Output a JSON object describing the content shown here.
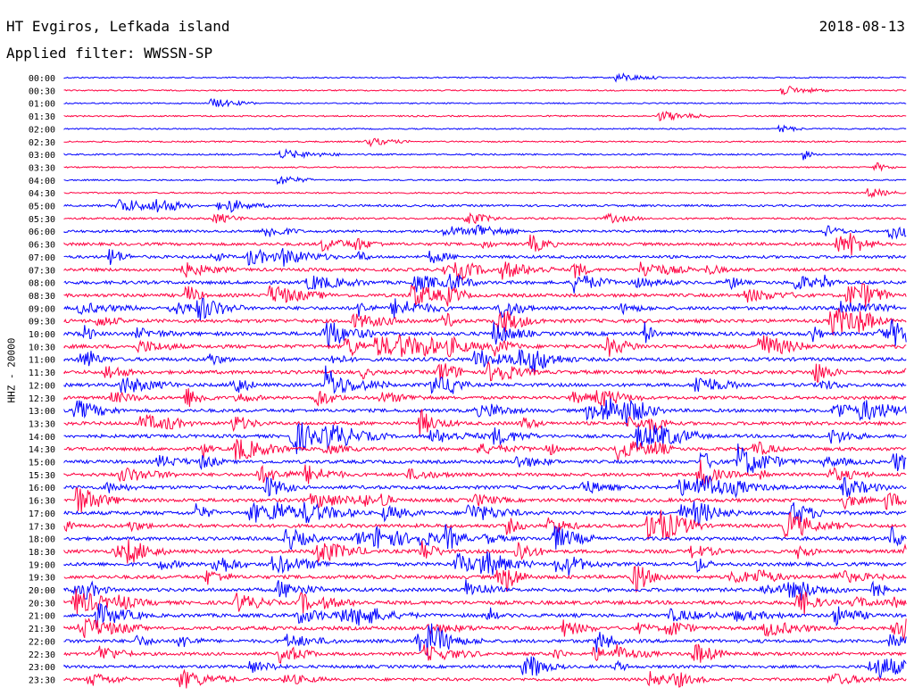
{
  "header": {
    "station": "HT Evgiros, Lefkada island",
    "date": "2018-08-13",
    "filter": "Applied filter: WWSSN-SP"
  },
  "chart_data": {
    "type": "line",
    "title": "HT Evgiros, Lefkada island",
    "ylabel": "HHZ - 20000",
    "xlabel": "",
    "row_labels": [
      "00:00",
      "00:30",
      "01:00",
      "01:30",
      "02:00",
      "02:30",
      "03:00",
      "03:30",
      "04:00",
      "04:30",
      "05:00",
      "05:30",
      "06:00",
      "06:30",
      "07:00",
      "07:30",
      "08:00",
      "08:30",
      "09:00",
      "09:30",
      "10:00",
      "10:30",
      "11:00",
      "11:30",
      "12:00",
      "12:30",
      "13:00",
      "13:30",
      "14:00",
      "14:30",
      "15:00",
      "15:30",
      "16:00",
      "16:30",
      "17:00",
      "17:30",
      "18:00",
      "18:30",
      "19:00",
      "19:30",
      "20:00",
      "20:30",
      "21:00",
      "21:30",
      "22:00",
      "22:30",
      "23:00",
      "23:30"
    ],
    "colors": [
      "#0000ff",
      "#ff0040"
    ],
    "activity": [
      0.05,
      0.05,
      0.04,
      0.08,
      0.05,
      0.08,
      0.12,
      0.06,
      0.08,
      0.1,
      0.25,
      0.2,
      0.35,
      0.45,
      0.45,
      0.5,
      0.55,
      0.55,
      0.55,
      0.6,
      0.65,
      0.65,
      0.6,
      0.6,
      0.55,
      0.5,
      0.55,
      0.55,
      0.55,
      0.55,
      0.55,
      0.55,
      0.6,
      0.6,
      0.65,
      0.6,
      0.6,
      0.6,
      0.6,
      0.6,
      0.6,
      0.65,
      0.6,
      0.6,
      0.55,
      0.5,
      0.45,
      0.45
    ],
    "grid": false
  }
}
